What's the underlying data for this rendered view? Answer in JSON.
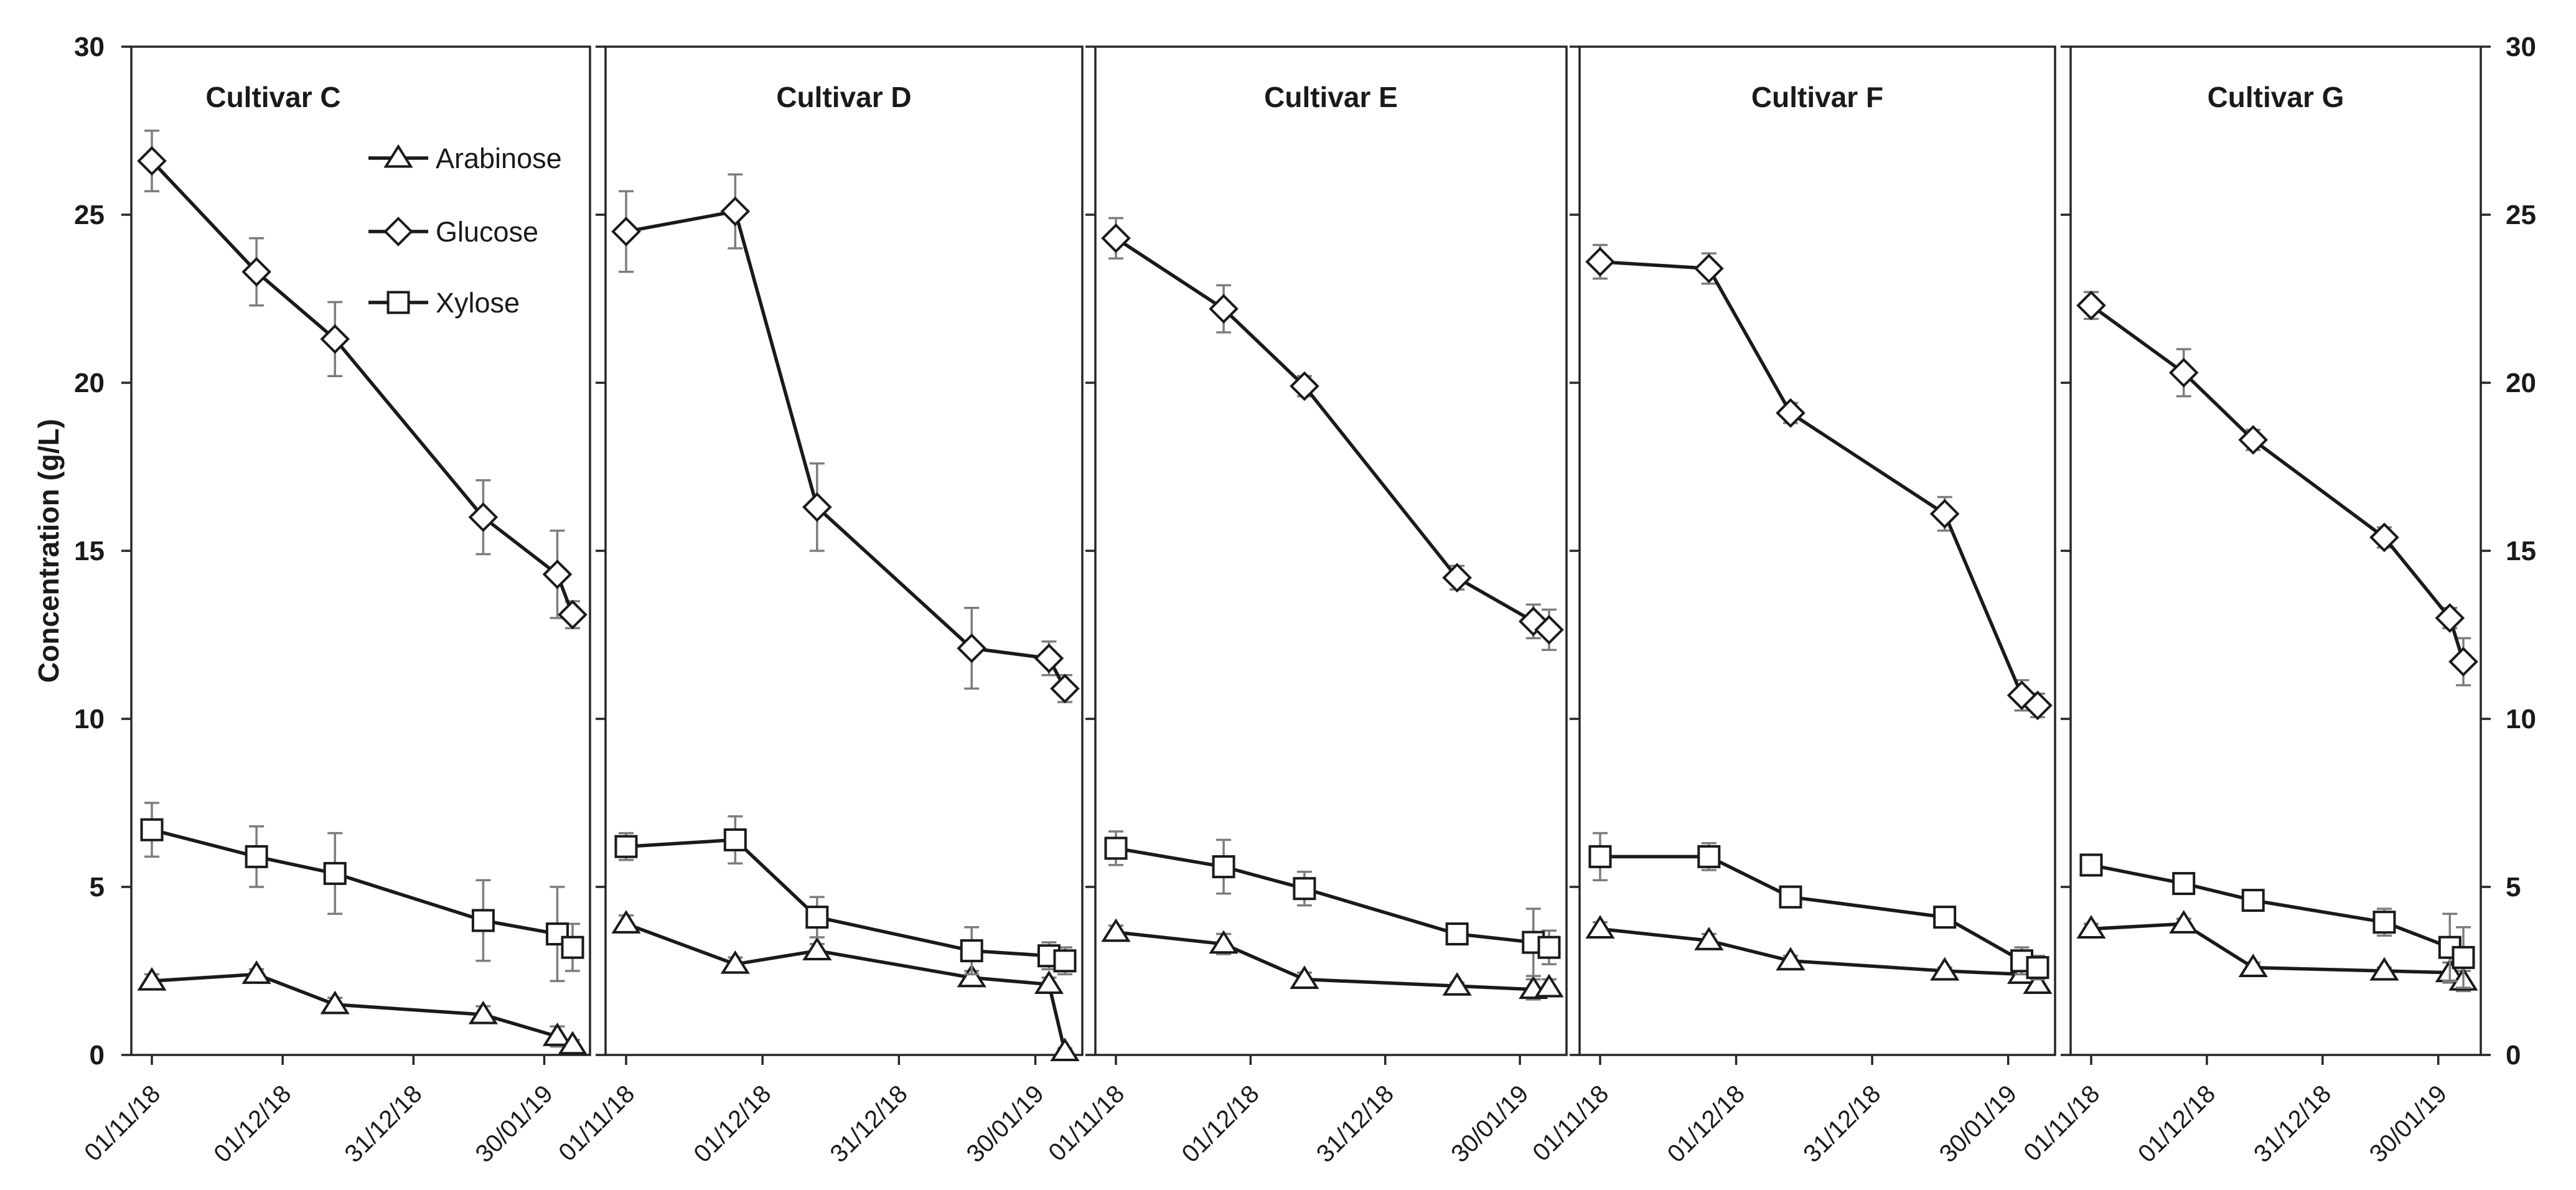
{
  "chart_data": {
    "type": "line",
    "title": "",
    "ylabel": "Concentration (g/L)",
    "ylim": [
      0,
      30
    ],
    "yticks": [
      0,
      5,
      10,
      15,
      20,
      25,
      30
    ],
    "x_tick_labels": [
      "01/11/18",
      "01/12/18",
      "31/12/18",
      "30/01/19"
    ],
    "x_tick_days": [
      0,
      30,
      60,
      90
    ],
    "x_days": [
      0,
      24,
      42,
      76,
      93,
      96.5
    ],
    "grid": false,
    "legend_position": "inside-first-panel-top-right",
    "line_color": "#1a1a1a",
    "error_bar_color": "#7d7d7d",
    "legend": [
      {
        "label": "Arabinose",
        "marker": "triangle"
      },
      {
        "label": "Glucose",
        "marker": "diamond"
      },
      {
        "label": "Xylose",
        "marker": "square"
      }
    ],
    "panels": [
      {
        "title": "Cultivar C",
        "series": [
          {
            "name": "Arabinose",
            "marker": "triangle",
            "values": [
              2.2,
              2.4,
              1.5,
              1.2,
              0.55,
              0.3
            ],
            "errors": [
              0.2,
              0.15,
              0.2,
              0.25,
              0.3,
              0.15
            ]
          },
          {
            "name": "Glucose",
            "marker": "diamond",
            "values": [
              26.6,
              23.3,
              21.3,
              16.0,
              14.3,
              13.1
            ],
            "errors": [
              0.9,
              1.0,
              1.1,
              1.1,
              1.3,
              0.4
            ]
          },
          {
            "name": "Xylose",
            "marker": "square",
            "values": [
              6.7,
              5.9,
              5.4,
              4.0,
              3.6,
              3.2
            ],
            "errors": [
              0.8,
              0.9,
              1.2,
              1.2,
              1.4,
              0.7
            ]
          }
        ]
      },
      {
        "title": "Cultivar D",
        "series": [
          {
            "name": "Arabinose",
            "marker": "triangle",
            "values": [
              3.9,
              2.7,
              3.1,
              2.3,
              2.1,
              0.1
            ],
            "errors": [
              0.25,
              0.2,
              0.2,
              0.2,
              0.2,
              0.1
            ]
          },
          {
            "name": "Glucose",
            "marker": "diamond",
            "values": [
              24.5,
              25.1,
              16.3,
              12.1,
              11.8,
              10.9
            ],
            "errors": [
              1.2,
              1.1,
              1.3,
              1.2,
              0.5,
              0.4
            ]
          },
          {
            "name": "Xylose",
            "marker": "square",
            "values": [
              6.2,
              6.4,
              4.1,
              3.1,
              2.95,
              2.8
            ],
            "errors": [
              0.4,
              0.7,
              0.6,
              0.7,
              0.4,
              0.4
            ]
          }
        ]
      },
      {
        "title": "Cultivar E",
        "series": [
          {
            "name": "Arabinose",
            "marker": "triangle",
            "values": [
              3.65,
              3.3,
              2.25,
              2.05,
              1.95,
              2.0
            ],
            "errors": [
              0.2,
              0.3,
              0.2,
              0.1,
              0.3,
              0.25
            ]
          },
          {
            "name": "Glucose",
            "marker": "diamond",
            "values": [
              24.3,
              22.2,
              19.9,
              14.2,
              12.9,
              12.65
            ],
            "errors": [
              0.6,
              0.7,
              0.3,
              0.35,
              0.5,
              0.6
            ]
          },
          {
            "name": "Xylose",
            "marker": "square",
            "values": [
              6.15,
              5.6,
              4.95,
              3.6,
              3.35,
              3.2
            ],
            "errors": [
              0.5,
              0.8,
              0.5,
              0.3,
              1.0,
              0.5
            ]
          }
        ]
      },
      {
        "title": "Cultivar F",
        "series": [
          {
            "name": "Arabinose",
            "marker": "triangle",
            "values": [
              3.75,
              3.4,
              2.8,
              2.5,
              2.4,
              2.1
            ],
            "errors": [
              0.2,
              0.2,
              0.15,
              0.1,
              0.2,
              0.2
            ]
          },
          {
            "name": "Glucose",
            "marker": "diamond",
            "values": [
              23.6,
              23.4,
              19.1,
              16.1,
              10.7,
              10.4
            ],
            "errors": [
              0.5,
              0.45,
              0.3,
              0.5,
              0.45,
              0.35
            ]
          },
          {
            "name": "Xylose",
            "marker": "square",
            "values": [
              5.9,
              5.9,
              4.7,
              4.1,
              2.8,
              2.6
            ],
            "errors": [
              0.7,
              0.4,
              0.3,
              0.3,
              0.4,
              0.35
            ]
          }
        ]
      },
      {
        "title": "Cultivar G",
        "series": [
          {
            "name": "Arabinose",
            "marker": "triangle",
            "values": [
              3.75,
              3.9,
              2.6,
              2.5,
              2.45,
              2.2
            ],
            "errors": [
              0.15,
              0.15,
              0.15,
              0.1,
              0.3,
              0.3
            ]
          },
          {
            "name": "Glucose",
            "marker": "diamond",
            "values": [
              22.3,
              20.3,
              18.3,
              15.4,
              13.0,
              11.7
            ],
            "errors": [
              0.4,
              0.7,
              0.3,
              0.3,
              0.3,
              0.7
            ]
          },
          {
            "name": "Xylose",
            "marker": "square",
            "values": [
              5.65,
              5.1,
              4.6,
              3.95,
              3.2,
              2.9
            ],
            "errors": [
              0.3,
              0.3,
              0.3,
              0.4,
              1.0,
              0.9
            ]
          }
        ]
      }
    ]
  }
}
